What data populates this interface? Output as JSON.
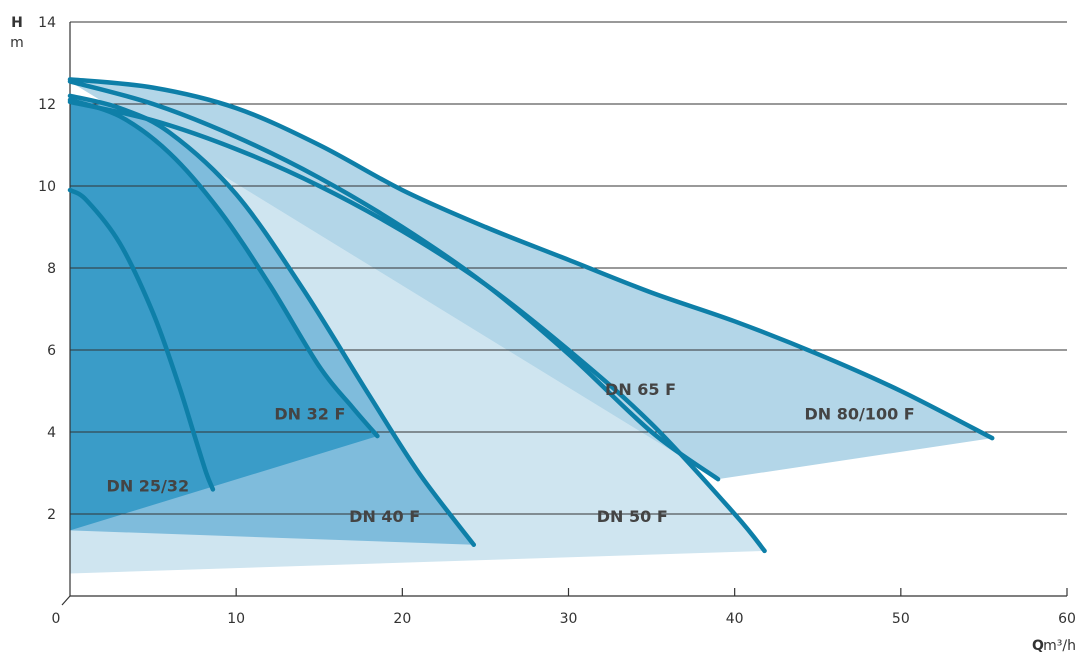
{
  "chart_data": {
    "type": "line",
    "title": "",
    "xlabel": {
      "symbol": "Q",
      "unit": "m³/h"
    },
    "ylabel": {
      "symbol": "H",
      "unit": "m"
    },
    "xlim": [
      0,
      60
    ],
    "ylim": [
      0,
      14
    ],
    "x_ticks": [
      "0",
      "10",
      "20",
      "30",
      "40",
      "50",
      "60"
    ],
    "y_ticks": [
      "2",
      "4",
      "6",
      "8",
      "10",
      "12",
      "14"
    ],
    "grid": "horizontal",
    "colors": {
      "curve": "#0e7fa8",
      "grid": "#333333",
      "axis": "#333333",
      "fill_dark": "#3a9cc8",
      "fill_medium": "#7fbcdc",
      "fill_light": "#cfe5f0",
      "fill_mid_light": "#b3d6e8"
    },
    "series": [
      {
        "name": "DN 25/32",
        "x": [
          0,
          1,
          3,
          5,
          6.5,
          7.5,
          8.2,
          8.6
        ],
        "y": [
          9.9,
          9.65,
          8.6,
          6.9,
          5.2,
          3.9,
          3.0,
          2.6
        ],
        "fill_color": "fill_dark",
        "fill_bottom": {
          "x0": 0,
          "y0": 1.6,
          "x1": 18.5,
          "y1": 3.9
        }
      },
      {
        "name": "DN 32 F",
        "x": [
          0,
          3,
          6,
          9,
          12,
          15,
          17,
          18.5
        ],
        "y": [
          12.1,
          11.7,
          10.8,
          9.4,
          7.6,
          5.6,
          4.6,
          3.9
        ],
        "fill_color": "fill_dark",
        "fill_bottom": {
          "x0": 0,
          "y0": 1.6,
          "x1": 18.5,
          "y1": 3.9
        }
      },
      {
        "name": "DN 40 F",
        "x": [
          0,
          3,
          6,
          10,
          14,
          18,
          21,
          24.3
        ],
        "y": [
          12.2,
          11.9,
          11.3,
          9.8,
          7.5,
          4.9,
          3.0,
          1.25
        ],
        "fill_color": "fill_medium",
        "fill_bottom": {
          "x0": 0,
          "y0": 1.6,
          "x1": 24.3,
          "y1": 1.25
        }
      },
      {
        "name": "DN 50 F",
        "x": [
          0,
          5,
          10,
          15,
          20,
          25,
          30,
          35,
          40,
          41.8
        ],
        "y": [
          12.05,
          11.6,
          10.9,
          10.0,
          8.9,
          7.6,
          6.0,
          4.2,
          2.0,
          1.1
        ],
        "fill_color": "fill_light",
        "fill_bottom": {
          "x0": 0,
          "y0": 0.55,
          "x1": 41.8,
          "y1": 1.1
        }
      },
      {
        "name": "DN 65 F",
        "x": [
          0,
          5,
          10,
          15,
          20,
          25,
          30,
          35,
          39
        ],
        "y": [
          12.55,
          12.0,
          11.2,
          10.2,
          9.0,
          7.6,
          5.9,
          4.0,
          2.85
        ],
        "fill_color": "fill_mid_light",
        "fill_bottom": {
          "x0": 0,
          "y0": 12.55,
          "x1": 39,
          "y1": 2.85
        }
      },
      {
        "name": "DN 80/100 F",
        "x": [
          0,
          5,
          10,
          15,
          20,
          25,
          30,
          35,
          40,
          45,
          50,
          55.5
        ],
        "y": [
          12.6,
          12.4,
          11.9,
          11.0,
          9.9,
          9.0,
          8.2,
          7.4,
          6.7,
          5.9,
          5.0,
          3.85
        ],
        "fill_color": "fill_mid_light",
        "fill_bottom": {
          "x0": 39,
          "y0": 2.85,
          "x1": 55.5,
          "y1": 3.85
        }
      }
    ],
    "labels": [
      {
        "text": "DN 25/32",
        "x": 2.2,
        "y": 2.55,
        "anchor": "start"
      },
      {
        "text": "DN 32 F",
        "x": 12.3,
        "y": 4.3,
        "anchor": "start"
      },
      {
        "text": "DN 40 F",
        "x": 16.8,
        "y": 1.8,
        "anchor": "start"
      },
      {
        "text": "DN 50 F",
        "x": 31.7,
        "y": 1.8,
        "anchor": "start"
      },
      {
        "text": "DN 65 F",
        "x": 32.2,
        "y": 4.9,
        "anchor": "start"
      },
      {
        "text": "DN 80/100 F",
        "x": 44.2,
        "y": 4.3,
        "anchor": "start"
      }
    ]
  }
}
